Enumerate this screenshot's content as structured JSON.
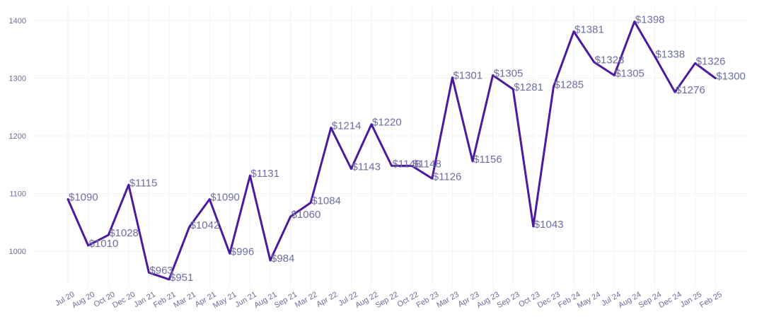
{
  "chart_data": {
    "type": "line",
    "title": "",
    "xlabel": "",
    "ylabel": "",
    "categories": [
      "Jul 20",
      "Aug 20",
      "Oct 20",
      "Dec 20",
      "Jan 21",
      "Feb 21",
      "Mar 21",
      "Apr 21",
      "May 21",
      "Jun 21",
      "Aug 21",
      "Sep 21",
      "Mar 22",
      "Apr 22",
      "Jul 22",
      "Aug 22",
      "Sep 22",
      "Oct 22",
      "Feb 23",
      "Mar 23",
      "Apr 23",
      "Aug 23",
      "Sep 23",
      "Oct 23",
      "Dec 23",
      "Feb 24",
      "May 24",
      "Jul 24",
      "Aug 24",
      "Sep 24",
      "Dec 24",
      "Jan 25",
      "Feb 25"
    ],
    "values": [
      1090,
      1010,
      1028,
      1115,
      963,
      951,
      1042,
      1090,
      996,
      1131,
      984,
      1060,
      1084,
      1214,
      1143,
      1220,
      1148,
      1148,
      1126,
      1301,
      1156,
      1305,
      1281,
      1043,
      1285,
      1381,
      1328,
      1305,
      1398,
      1338,
      1276,
      1326,
      1300
    ],
    "data_labels": [
      "$1090",
      "$1010",
      "$1028",
      "$1115",
      "$963",
      "$951",
      "$1042",
      "$1090",
      "$996",
      "$1131",
      "$984",
      "$1060",
      "$1084",
      "$1214",
      "$1143",
      "$1220",
      "$1148",
      "$1148",
      "$1126",
      "$1301",
      "$1156",
      "$1305",
      "$1281",
      "$1043",
      "$1285",
      "$1381",
      "$1328",
      "$1305",
      "$1398",
      "$1338",
      "$1276",
      "$1326",
      "$1300"
    ],
    "yticks": [
      1000,
      1100,
      1200,
      1300,
      1400
    ],
    "ylim": [
      930,
      1425
    ],
    "grid": true,
    "legend": "none",
    "line_color": "#4a1aa0"
  }
}
